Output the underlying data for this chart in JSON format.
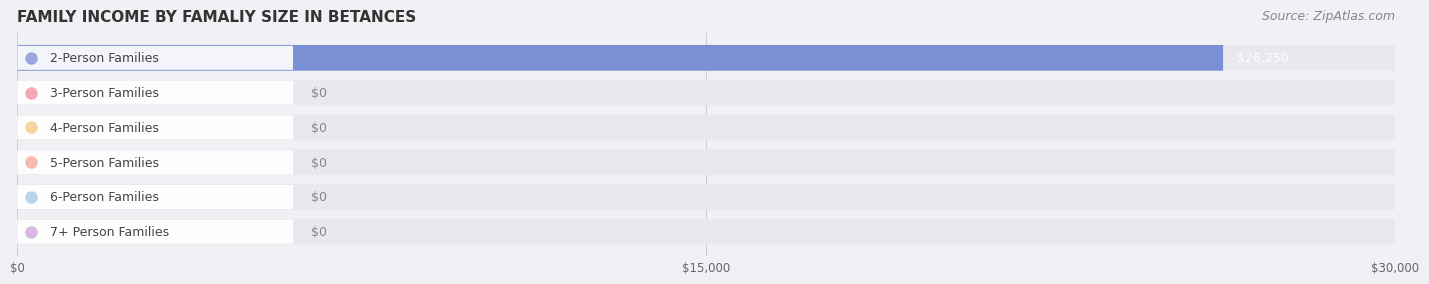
{
  "title": "FAMILY INCOME BY FAMALIY SIZE IN BETANCES",
  "source": "Source: ZipAtlas.com",
  "categories": [
    "2-Person Families",
    "3-Person Families",
    "4-Person Families",
    "5-Person Families",
    "6-Person Families",
    "7+ Person Families"
  ],
  "values": [
    26250,
    0,
    0,
    0,
    0,
    0
  ],
  "bar_colors": [
    "#7b8fd4",
    "#f2909a",
    "#f5c98a",
    "#f4a99a",
    "#a8c4e0",
    "#c9a8d4"
  ],
  "label_bg_colors": [
    "#9aa8df",
    "#f4a8b0",
    "#f7d4a0",
    "#f7b8b0",
    "#b8d4ea",
    "#d8b8e0"
  ],
  "value_labels": [
    "$26,250",
    "$0",
    "$0",
    "$0",
    "$0",
    "$0"
  ],
  "xlim": [
    0,
    30000
  ],
  "xticks": [
    0,
    15000,
    30000
  ],
  "xtick_labels": [
    "$0",
    "$15,000",
    "$30,000"
  ],
  "background_color": "#f0f0f5",
  "bar_background": "#e8e8ee",
  "title_fontsize": 11,
  "source_fontsize": 9,
  "label_fontsize": 9,
  "value_fontsize": 9
}
